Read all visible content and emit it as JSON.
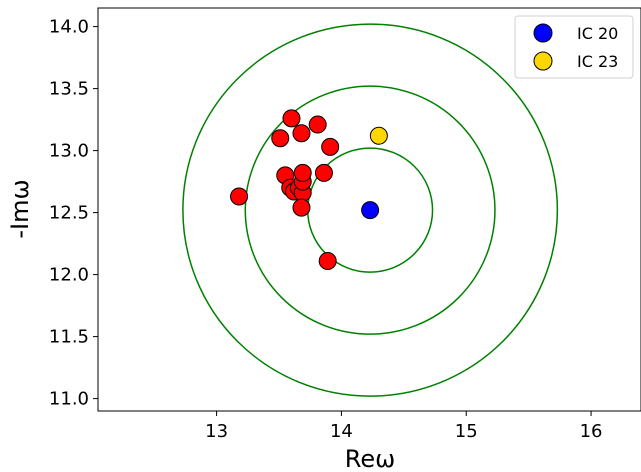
{
  "chart_data": {
    "type": "scatter",
    "title": "",
    "xlabel": "Reω",
    "ylabel": "-Imω",
    "xlim": [
      12.05,
      16.4
    ],
    "ylim": [
      10.9,
      14.15
    ],
    "xticks": [
      13,
      14,
      15,
      16
    ],
    "yticks": [
      11.0,
      11.5,
      12.0,
      12.5,
      13.0,
      13.5,
      14.0
    ],
    "xtick_labels": [
      "13",
      "14",
      "15",
      "16"
    ],
    "ytick_labels": [
      "11.0",
      "11.5",
      "12.0",
      "12.5",
      "13.0",
      "13.5",
      "14.0"
    ],
    "grid": false,
    "legend_position": "top-right",
    "circles": {
      "center": [
        14.23,
        12.52
      ],
      "radii": [
        0.5,
        1.0,
        1.5
      ],
      "color": "#008000"
    },
    "series": [
      {
        "name": "",
        "color": "#ff0000",
        "points": [
          [
            13.18,
            12.63
          ],
          [
            13.51,
            13.1
          ],
          [
            13.6,
            13.26
          ],
          [
            13.68,
            13.14
          ],
          [
            13.81,
            13.21
          ],
          [
            13.91,
            13.03
          ],
          [
            13.55,
            12.8
          ],
          [
            13.59,
            12.7
          ],
          [
            13.62,
            12.67
          ],
          [
            13.66,
            12.7
          ],
          [
            13.69,
            12.66
          ],
          [
            13.69,
            12.75
          ],
          [
            13.69,
            12.82
          ],
          [
            13.68,
            12.54
          ],
          [
            13.86,
            12.82
          ],
          [
            13.89,
            12.11
          ]
        ]
      },
      {
        "name": "IC 20",
        "color": "#0000ff",
        "points": [
          [
            14.23,
            12.52
          ]
        ]
      },
      {
        "name": "IC 23",
        "color": "#ffd700",
        "points": [
          [
            14.3,
            13.12
          ]
        ]
      }
    ]
  }
}
